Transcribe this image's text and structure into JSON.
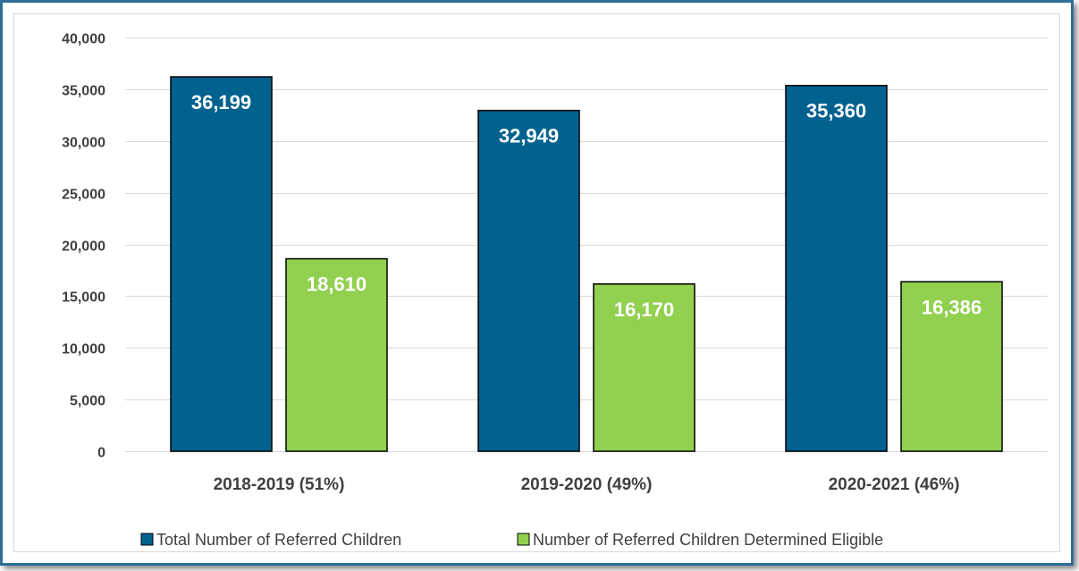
{
  "chart_data": {
    "type": "bar",
    "title": "",
    "xlabel": "",
    "ylabel": "",
    "categories": [
      "2018-2019 (51%)",
      "2019-2020 (49%)",
      "2020-2021 (46%)"
    ],
    "series": [
      {
        "name": "Total Number of Referred Children",
        "values": [
          36199,
          32949,
          35360
        ],
        "labels": [
          "36,199",
          "32,949",
          "35,360"
        ],
        "color": "#01628f"
      },
      {
        "name": "Number of Referred Children Determined Eligible",
        "values": [
          18610,
          16170,
          16386
        ],
        "labels": [
          "18,610",
          "16,170",
          "16,386"
        ],
        "color": "#92d050"
      }
    ],
    "ylim": [
      0,
      40000
    ],
    "yticks": [
      0,
      5000,
      10000,
      15000,
      20000,
      25000,
      30000,
      35000,
      40000
    ],
    "ytick_labels": [
      "0",
      "5,000",
      "10,000",
      "15,000",
      "20,000",
      "25,000",
      "30,000",
      "35,000",
      "40,000"
    ],
    "grid": true,
    "legend_position": "bottom",
    "frame_color": "#2e6f97"
  }
}
